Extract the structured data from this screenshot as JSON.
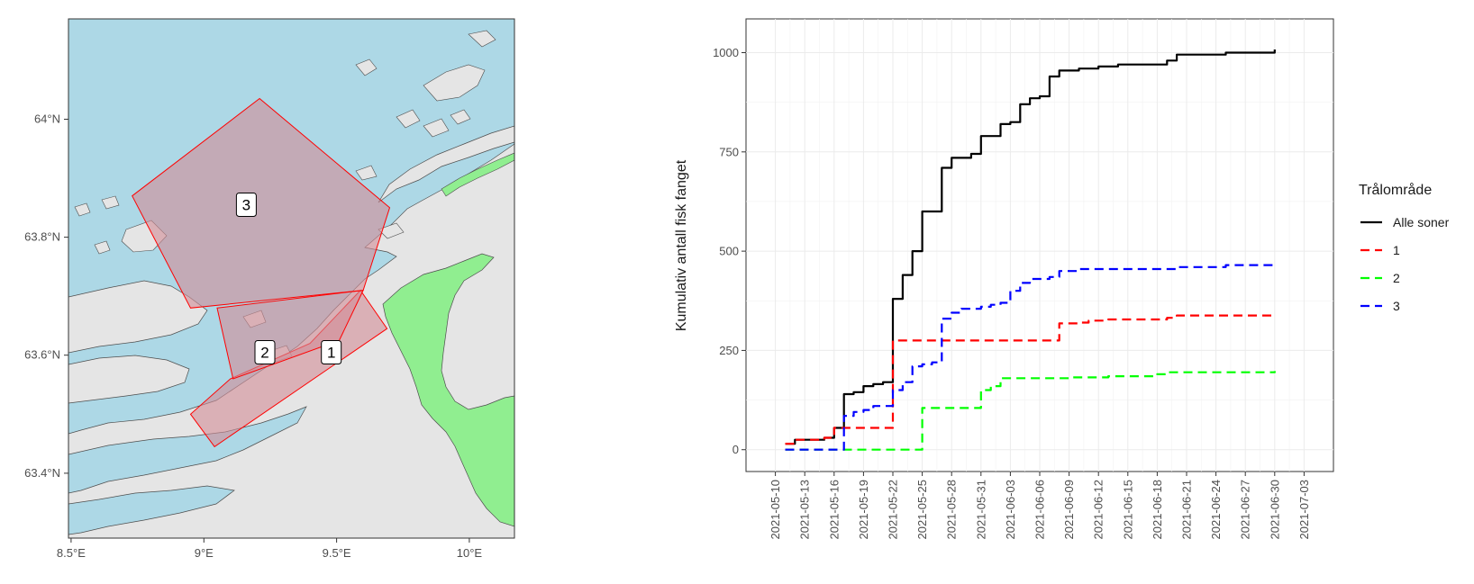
{
  "chart_data": [
    {
      "type": "map",
      "title": "",
      "x_ticks": [
        "8.5°E",
        "9°E",
        "9.5°E",
        "10°E"
      ],
      "x_tick_values": [
        8.5,
        9.0,
        9.5,
        10.0
      ],
      "y_ticks": [
        "63.4°N",
        "63.6°N",
        "63.8°N",
        "64°N"
      ],
      "y_tick_values": [
        63.4,
        63.6,
        63.8,
        64.0
      ],
      "xlim": [
        8.49,
        10.17
      ],
      "ylim": [
        63.29,
        64.17
      ],
      "zones": [
        {
          "label": "1",
          "label_lon": 9.48,
          "label_lat": 63.605,
          "polygon": [
            [
              9.59,
              63.71
            ],
            [
              9.69,
              63.645
            ],
            [
              9.04,
              63.445
            ],
            [
              8.95,
              63.5
            ],
            [
              9.1,
              63.56
            ],
            [
              9.4,
              63.62
            ]
          ]
        },
        {
          "label": "2",
          "label_lon": 9.23,
          "label_lat": 63.605,
          "polygon": [
            [
              9.05,
              63.68
            ],
            [
              9.6,
              63.71
            ],
            [
              9.51,
              63.625
            ],
            [
              9.11,
              63.56
            ]
          ]
        },
        {
          "label": "3",
          "label_lon": 9.16,
          "label_lat": 63.855,
          "polygon": [
            [
              9.21,
              64.035
            ],
            [
              9.7,
              63.85
            ],
            [
              9.6,
              63.71
            ],
            [
              8.95,
              63.68
            ],
            [
              8.73,
              63.87
            ]
          ]
        }
      ],
      "colors": {
        "sea": "#add8e6",
        "land": "#e5e5e5",
        "green_area": "#90ee90",
        "zone_fill": "#d28c96",
        "zone_stroke": "#ff0000"
      }
    },
    {
      "type": "line",
      "title": "",
      "xlabel": "",
      "ylabel": "Kumulativ antall fisk fanget",
      "x_type": "date",
      "xlim": [
        "2021-05-07",
        "2021-07-06"
      ],
      "ylim": [
        -55,
        1085
      ],
      "y_ticks": [
        0,
        250,
        500,
        750,
        1000
      ],
      "x_ticks": [
        "2021-05-10",
        "2021-05-13",
        "2021-05-16",
        "2021-05-19",
        "2021-05-22",
        "2021-05-25",
        "2021-05-28",
        "2021-05-31",
        "2021-06-03",
        "2021-06-06",
        "2021-06-09",
        "2021-06-12",
        "2021-06-15",
        "2021-06-18",
        "2021-06-21",
        "2021-06-24",
        "2021-06-27",
        "2021-06-30",
        "2021-07-03"
      ],
      "grid": true,
      "legend": {
        "title": "Trålområde",
        "position": "right"
      },
      "series": [
        {
          "name": "Alle soner",
          "color": "#000000",
          "dash": "solid",
          "points": [
            [
              "2021-05-11",
              15
            ],
            [
              "2021-05-12",
              25
            ],
            [
              "2021-05-14",
              25
            ],
            [
              "2021-05-15",
              30
            ],
            [
              "2021-05-16",
              55
            ],
            [
              "2021-05-17",
              140
            ],
            [
              "2021-05-18",
              145
            ],
            [
              "2021-05-19",
              160
            ],
            [
              "2021-05-20",
              165
            ],
            [
              "2021-05-21",
              170
            ],
            [
              "2021-05-22",
              380
            ],
            [
              "2021-05-23",
              440
            ],
            [
              "2021-05-24",
              500
            ],
            [
              "2021-05-25",
              600
            ],
            [
              "2021-05-26",
              600
            ],
            [
              "2021-05-27",
              710
            ],
            [
              "2021-05-28",
              735
            ],
            [
              "2021-05-29",
              735
            ],
            [
              "2021-05-30",
              745
            ],
            [
              "2021-05-31",
              790
            ],
            [
              "2021-06-01",
              790
            ],
            [
              "2021-06-02",
              820
            ],
            [
              "2021-06-03",
              825
            ],
            [
              "2021-06-04",
              870
            ],
            [
              "2021-06-05",
              885
            ],
            [
              "2021-06-06",
              890
            ],
            [
              "2021-06-07",
              940
            ],
            [
              "2021-06-08",
              955
            ],
            [
              "2021-06-10",
              960
            ],
            [
              "2021-06-12",
              965
            ],
            [
              "2021-06-14",
              970
            ],
            [
              "2021-06-17",
              970
            ],
            [
              "2021-06-19",
              980
            ],
            [
              "2021-06-20",
              995
            ],
            [
              "2021-06-23",
              995
            ],
            [
              "2021-06-25",
              1000
            ],
            [
              "2021-06-30",
              1008
            ]
          ]
        },
        {
          "name": "1",
          "color": "#ff0000",
          "dash": "dashed",
          "points": [
            [
              "2021-05-11",
              15
            ],
            [
              "2021-05-12",
              25
            ],
            [
              "2021-05-14",
              25
            ],
            [
              "2021-05-15",
              30
            ],
            [
              "2021-05-16",
              55
            ],
            [
              "2021-05-17",
              55
            ],
            [
              "2021-05-21",
              55
            ],
            [
              "2021-05-22",
              275
            ],
            [
              "2021-06-07",
              275
            ],
            [
              "2021-06-08",
              318
            ],
            [
              "2021-06-10",
              320
            ],
            [
              "2021-06-11",
              325
            ],
            [
              "2021-06-13",
              328
            ],
            [
              "2021-06-19",
              332
            ],
            [
              "2021-06-20",
              338
            ],
            [
              "2021-06-30",
              340
            ]
          ]
        },
        {
          "name": "2",
          "color": "#00ff00",
          "dash": "dashed",
          "points": [
            [
              "2021-05-11",
              0
            ],
            [
              "2021-05-23",
              0
            ],
            [
              "2021-05-24",
              0
            ],
            [
              "2021-05-25",
              105
            ],
            [
              "2021-05-30",
              105
            ],
            [
              "2021-05-31",
              150
            ],
            [
              "2021-06-01",
              160
            ],
            [
              "2021-06-02",
              180
            ],
            [
              "2021-06-09",
              182
            ],
            [
              "2021-06-13",
              185
            ],
            [
              "2021-06-18",
              190
            ],
            [
              "2021-06-19",
              195
            ],
            [
              "2021-06-30",
              198
            ]
          ]
        },
        {
          "name": "3",
          "color": "#0000ff",
          "dash": "dashed",
          "points": [
            [
              "2021-05-11",
              0
            ],
            [
              "2021-05-16",
              0
            ],
            [
              "2021-05-17",
              85
            ],
            [
              "2021-05-18",
              95
            ],
            [
              "2021-05-19",
              100
            ],
            [
              "2021-05-20",
              110
            ],
            [
              "2021-05-21",
              110
            ],
            [
              "2021-05-22",
              150
            ],
            [
              "2021-05-23",
              170
            ],
            [
              "2021-05-24",
              210
            ],
            [
              "2021-05-25",
              215
            ],
            [
              "2021-05-26",
              220
            ],
            [
              "2021-05-27",
              330
            ],
            [
              "2021-05-28",
              345
            ],
            [
              "2021-05-29",
              355
            ],
            [
              "2021-05-31",
              360
            ],
            [
              "2021-06-01",
              365
            ],
            [
              "2021-06-02",
              370
            ],
            [
              "2021-06-03",
              400
            ],
            [
              "2021-06-04",
              420
            ],
            [
              "2021-06-05",
              430
            ],
            [
              "2021-06-07",
              435
            ],
            [
              "2021-06-08",
              450
            ],
            [
              "2021-06-10",
              455
            ],
            [
              "2021-06-15",
              455
            ],
            [
              "2021-06-20",
              460
            ],
            [
              "2021-06-25",
              465
            ],
            [
              "2021-06-30",
              473
            ]
          ]
        }
      ]
    }
  ]
}
